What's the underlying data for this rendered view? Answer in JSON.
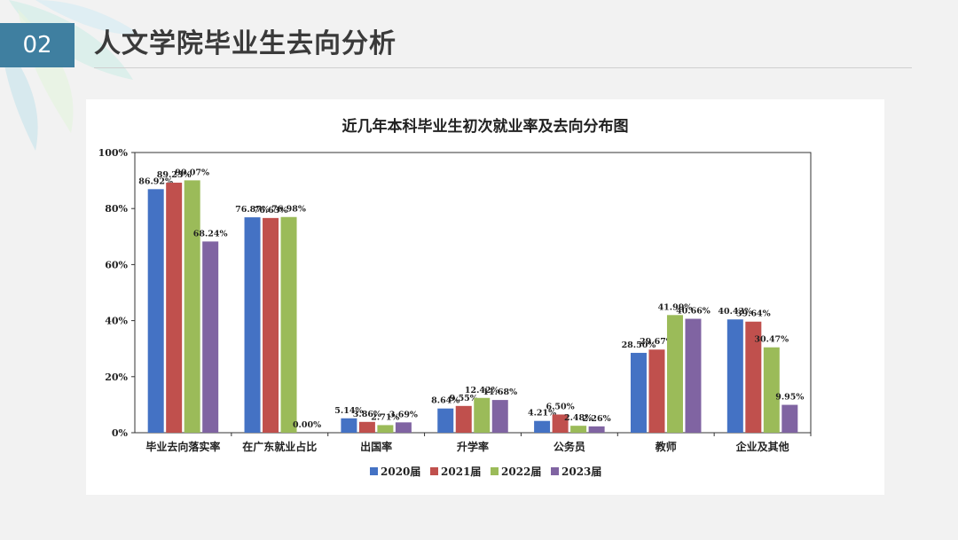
{
  "slide": {
    "number": "02",
    "title": "人文学院毕业生去向分析"
  },
  "colors": {
    "accent": "#3f7fa0",
    "series": [
      "#4472c4",
      "#c0504d",
      "#9bbb59",
      "#8064a2"
    ]
  },
  "chart_data": {
    "type": "bar",
    "title": "近几年本科毕业生初次就业率及去向分布图",
    "xlabel": "",
    "ylabel": "",
    "ylim": [
      0,
      100
    ],
    "yticks": [
      "0%",
      "20%",
      "40%",
      "60%",
      "80%",
      "100%"
    ],
    "grid": false,
    "legend_position": "bottom",
    "categories": [
      "毕业去向落实率",
      "在广东就业占比",
      "出国率",
      "升学率",
      "公务员",
      "教师",
      "企业及其他"
    ],
    "series": [
      {
        "name": "2020届",
        "values": [
          86.92,
          76.87,
          5.14,
          8.64,
          4.21,
          28.5,
          40.43
        ],
        "labels": [
          "86.92%",
          "76.87%",
          "5.14%",
          "8.64%",
          "4.21%",
          "28.50%",
          "40.43%"
        ]
      },
      {
        "name": "2021届",
        "values": [
          89.23,
          76.63,
          3.86,
          9.55,
          6.5,
          29.67,
          39.64
        ],
        "labels": [
          "89.23%",
          "76.63%",
          "3.86%",
          "9.55%",
          "6.50%",
          "29.67%",
          "39.64%"
        ]
      },
      {
        "name": "2022届",
        "values": [
          90.07,
          76.98,
          2.71,
          12.42,
          2.48,
          41.99,
          30.47
        ],
        "labels": [
          "90.07%",
          "76.98%",
          "2.71%",
          "12.42%",
          "2.48%",
          "41.99%",
          "30.47%"
        ]
      },
      {
        "name": "2023届",
        "values": [
          68.24,
          0.0,
          3.69,
          11.68,
          2.26,
          40.66,
          9.95
        ],
        "labels": [
          "68.24%",
          "0.00%",
          "3.69%",
          "11.68%",
          "2.26%",
          "40.66%",
          "9.95%"
        ]
      }
    ]
  }
}
